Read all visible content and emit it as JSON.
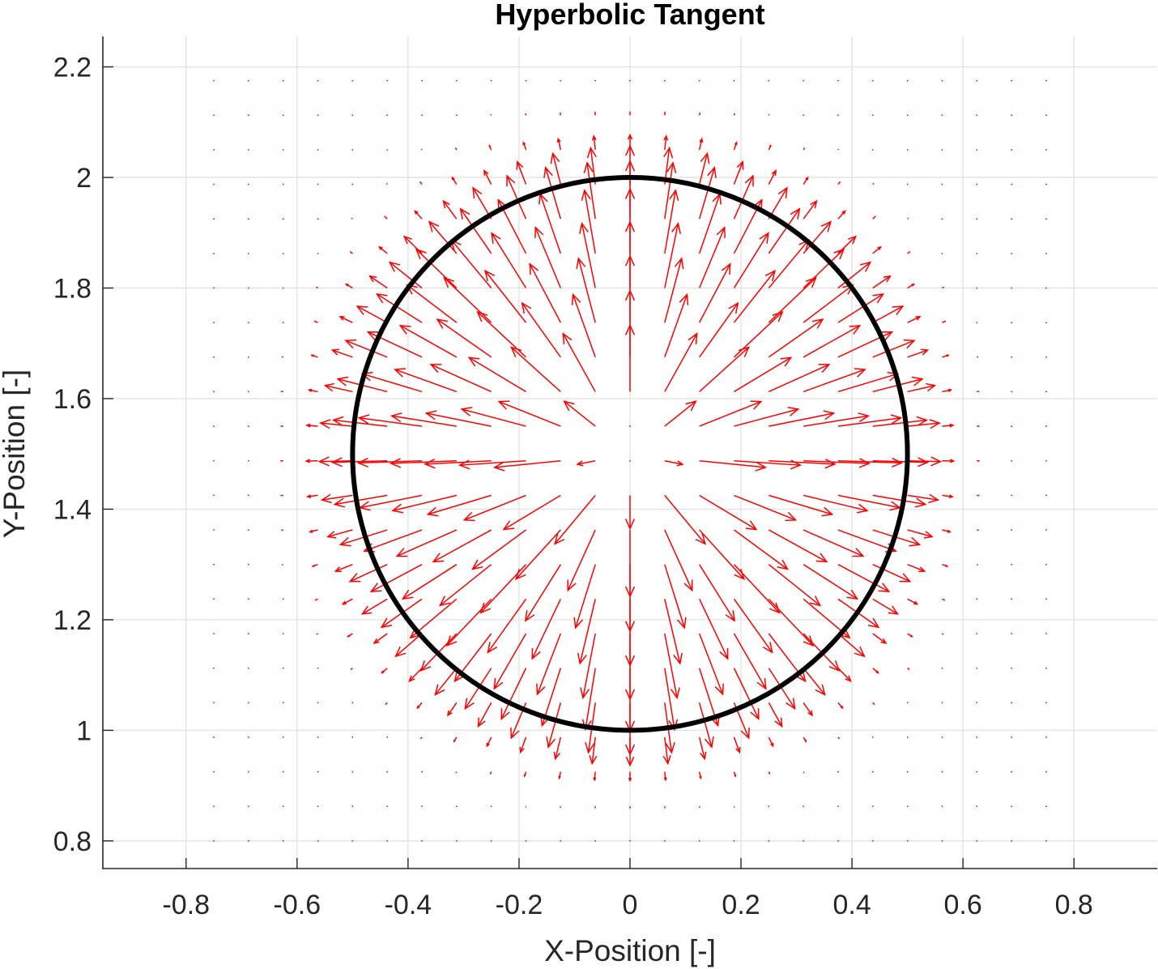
{
  "chart_data": {
    "type": "scatter",
    "subtype": "quiver",
    "title": "Hyperbolic Tangent",
    "xlabel": "X-Position [-]",
    "ylabel": "Y-Position [-]",
    "xlim": [
      -0.95,
      0.95
    ],
    "ylim": [
      0.75,
      2.255
    ],
    "xticks": [
      -0.8,
      -0.6,
      -0.4,
      -0.2,
      0,
      0.2,
      0.4,
      0.6,
      0.8
    ],
    "yticks": [
      0.8,
      1.0,
      1.2,
      1.4,
      1.6,
      1.8,
      2.0,
      2.2
    ],
    "xtick_labels": [
      "-0.8",
      "-0.6",
      "-0.4",
      "-0.2",
      "0",
      "0.2",
      "0.4",
      "0.6",
      "0.8"
    ],
    "ytick_labels": [
      "0.8",
      "1",
      "1.2",
      "1.4",
      "1.6",
      "1.8",
      "2",
      "2.2"
    ],
    "grid": true,
    "series": [
      {
        "kind": "circle",
        "center": [
          0,
          1.5
        ],
        "radius": 0.5,
        "color": "#000000"
      },
      {
        "kind": "vector-field",
        "color": "#ff0000",
        "grid_x": [
          -0.75,
          0.75,
          0.0625
        ],
        "grid_y": [
          0.8,
          2.2,
          0.0625
        ],
        "field": "radial from (0, 1.5), magnitude ~ 1 - tanh((r - 0.5)/0.08) tapering to zero far outside the circle"
      }
    ]
  }
}
